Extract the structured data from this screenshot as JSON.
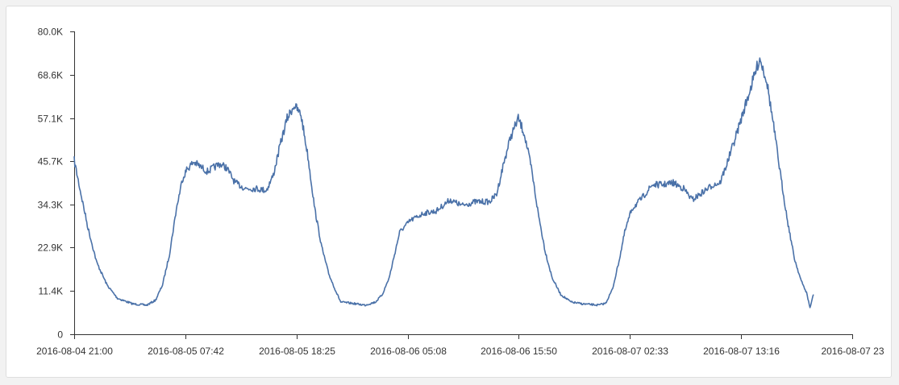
{
  "chart_data": {
    "type": "line",
    "title": "",
    "xlabel": "",
    "ylabel": "",
    "ylim": [
      0,
      80000
    ],
    "grid": false,
    "color": "#4a71a8",
    "y_ticks": [
      {
        "value": 0,
        "label": "0"
      },
      {
        "value": 11400,
        "label": "11.4K"
      },
      {
        "value": 22900,
        "label": "22.9K"
      },
      {
        "value": 34300,
        "label": "34.3K"
      },
      {
        "value": 45700,
        "label": "45.7K"
      },
      {
        "value": 57100,
        "label": "57.1K"
      },
      {
        "value": 68600,
        "label": "68.6K"
      },
      {
        "value": 80000,
        "label": "80.0K"
      }
    ],
    "x_ticks": [
      "2016-08-04 21:00",
      "2016-08-05 07:42",
      "2016-08-05 18:25",
      "2016-08-06 05:08",
      "2016-08-06 15:50",
      "2016-08-07 02:33",
      "2016-08-07 13:16",
      "2016-08-07 23"
    ],
    "series": [
      {
        "points": [
          [
            "2016-08-04 21:00",
            46000
          ],
          [
            "2016-08-04 21:35",
            38000
          ],
          [
            "2016-08-04 22:20",
            28000
          ],
          [
            "2016-08-04 23:10",
            19000
          ],
          [
            "2016-08-05 00:10",
            13000
          ],
          [
            "2016-08-05 01:10",
            9500
          ],
          [
            "2016-08-05 02:40",
            8000
          ],
          [
            "2016-08-05 04:00",
            7700
          ],
          [
            "2016-08-05 04:50",
            9000
          ],
          [
            "2016-08-05 05:30",
            13000
          ],
          [
            "2016-08-05 06:10",
            21000
          ],
          [
            "2016-08-05 06:50",
            33000
          ],
          [
            "2016-08-05 07:25",
            41000
          ],
          [
            "2016-08-05 07:50",
            43500
          ],
          [
            "2016-08-05 08:30",
            45500
          ],
          [
            "2016-08-05 09:50",
            43000
          ],
          [
            "2016-08-05 11:00",
            45000
          ],
          [
            "2016-08-05 11:40",
            44000
          ],
          [
            "2016-08-05 12:30",
            40000
          ],
          [
            "2016-08-05 13:30",
            38500
          ],
          [
            "2016-08-05 14:30",
            38500
          ],
          [
            "2016-08-05 15:30",
            38000
          ],
          [
            "2016-08-05 16:10",
            42000
          ],
          [
            "2016-08-05 16:50",
            50000
          ],
          [
            "2016-08-05 17:30",
            57000
          ],
          [
            "2016-08-05 18:10",
            60500
          ],
          [
            "2016-08-05 18:50",
            58000
          ],
          [
            "2016-08-05 19:30",
            47000
          ],
          [
            "2016-08-05 20:10",
            33000
          ],
          [
            "2016-08-05 20:50",
            23000
          ],
          [
            "2016-08-05 21:30",
            16000
          ],
          [
            "2016-08-05 22:10",
            11500
          ],
          [
            "2016-08-05 22:40",
            8500
          ],
          [
            "2016-08-05 23:40",
            8200
          ],
          [
            "2016-08-06 01:00",
            7700
          ],
          [
            "2016-08-06 02:00",
            8500
          ],
          [
            "2016-08-06 02:40",
            10500
          ],
          [
            "2016-08-06 03:20",
            15000
          ],
          [
            "2016-08-06 03:50",
            21000
          ],
          [
            "2016-08-06 04:20",
            27000
          ],
          [
            "2016-08-06 05:20",
            30000
          ],
          [
            "2016-08-06 06:40",
            32000
          ],
          [
            "2016-08-06 07:50",
            32500
          ],
          [
            "2016-08-06 09:10",
            35500
          ],
          [
            "2016-08-06 10:20",
            34000
          ],
          [
            "2016-08-06 11:40",
            35000
          ],
          [
            "2016-08-06 13:00",
            35000
          ],
          [
            "2016-08-06 13:40",
            37000
          ],
          [
            "2016-08-06 14:20",
            45000
          ],
          [
            "2016-08-06 15:00",
            52000
          ],
          [
            "2016-08-06 15:45",
            57000
          ],
          [
            "2016-08-06 16:20",
            53000
          ],
          [
            "2016-08-06 17:00",
            44000
          ],
          [
            "2016-08-06 17:40",
            32000
          ],
          [
            "2016-08-06 18:20",
            22000
          ],
          [
            "2016-08-06 19:00",
            15000
          ],
          [
            "2016-08-06 19:50",
            10500
          ],
          [
            "2016-08-06 20:50",
            8500
          ],
          [
            "2016-08-06 22:00",
            8000
          ],
          [
            "2016-08-06 23:30",
            7700
          ],
          [
            "2016-08-07 00:10",
            8200
          ],
          [
            "2016-08-07 00:50",
            12000
          ],
          [
            "2016-08-07 01:30",
            20000
          ],
          [
            "2016-08-07 02:00",
            27000
          ],
          [
            "2016-08-07 02:40",
            33000
          ],
          [
            "2016-08-07 03:40",
            36000
          ],
          [
            "2016-08-07 04:40",
            39500
          ],
          [
            "2016-08-07 05:40",
            39500
          ],
          [
            "2016-08-07 06:40",
            40000
          ],
          [
            "2016-08-07 07:40",
            38500
          ],
          [
            "2016-08-07 08:30",
            35500
          ],
          [
            "2016-08-07 09:30",
            37500
          ],
          [
            "2016-08-07 10:30",
            39500
          ],
          [
            "2016-08-07 11:10",
            40000
          ],
          [
            "2016-08-07 11:50",
            45000
          ],
          [
            "2016-08-07 12:40",
            52000
          ],
          [
            "2016-08-07 13:20",
            58000
          ],
          [
            "2016-08-07 14:00",
            64000
          ],
          [
            "2016-08-07 14:40",
            70000
          ],
          [
            "2016-08-07 15:00",
            73000
          ],
          [
            "2016-08-07 15:40",
            67000
          ],
          [
            "2016-08-07 16:20",
            55000
          ],
          [
            "2016-08-07 17:00",
            42000
          ],
          [
            "2016-08-07 17:40",
            30000
          ],
          [
            "2016-08-07 18:20",
            20000
          ],
          [
            "2016-08-07 19:00",
            14000
          ],
          [
            "2016-08-07 19:30",
            11000
          ],
          [
            "2016-08-07 19:50",
            7000
          ],
          [
            "2016-08-07 20:10",
            10500
          ]
        ]
      }
    ]
  }
}
